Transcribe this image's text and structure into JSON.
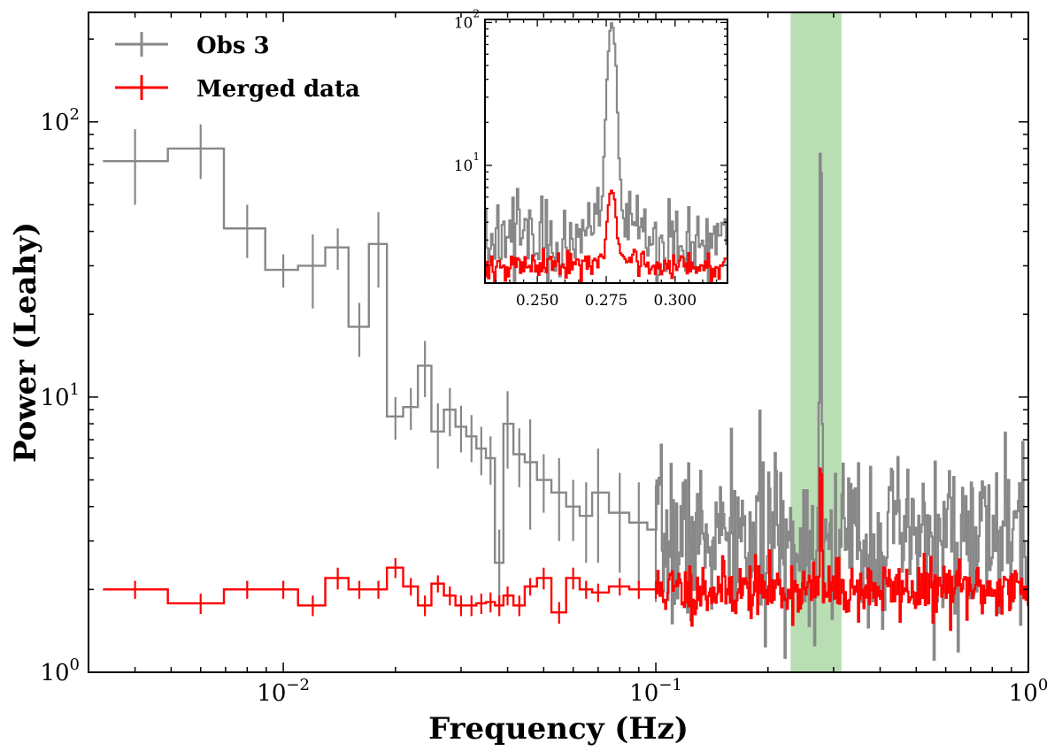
{
  "chart_data": {
    "type": "line",
    "style": "step",
    "title": "",
    "xlabel": "Frequency (Hz)",
    "ylabel": "Power (Leahy)",
    "xscale": "log",
    "yscale": "log",
    "xlim": [
      0.003,
      1.0
    ],
    "ylim": [
      1.0,
      250
    ],
    "x_major_ticks": [
      {
        "value": 0.01,
        "base": "10",
        "exp": "−2"
      },
      {
        "value": 0.1,
        "base": "10",
        "exp": "−1"
      },
      {
        "value": 1.0,
        "base": "10",
        "exp": "0"
      }
    ],
    "y_major_ticks": [
      {
        "value": 1,
        "base": "10",
        "exp": "0"
      },
      {
        "value": 10,
        "base": "10",
        "exp": "1"
      },
      {
        "value": 100,
        "base": "10",
        "exp": "2"
      }
    ],
    "highlight_band": {
      "x_from": 0.23,
      "x_to": 0.315,
      "color": "#b5dcb0"
    },
    "legend": {
      "placement": "top-left",
      "entries": [
        {
          "label": "Obs 3",
          "color": "#888888"
        },
        {
          "label": "Merged data",
          "color": "#ff0000"
        }
      ]
    },
    "series": [
      {
        "name": "Obs 3",
        "color": "#888888",
        "points": [
          [
            0.004,
            72,
            22
          ],
          [
            0.006,
            80,
            18
          ],
          [
            0.008,
            41,
            9
          ],
          [
            0.01,
            29,
            4
          ],
          [
            0.012,
            30,
            9
          ],
          [
            0.014,
            35,
            6
          ],
          [
            0.016,
            18,
            4
          ],
          [
            0.018,
            36,
            11
          ],
          [
            0.02,
            8.5,
            1.5
          ],
          [
            0.022,
            9.2,
            1.6
          ],
          [
            0.024,
            13,
            3
          ],
          [
            0.026,
            7.5,
            2
          ],
          [
            0.028,
            9.0,
            1.8
          ],
          [
            0.03,
            7.8,
            1.5
          ],
          [
            0.032,
            7.2,
            1.4
          ],
          [
            0.034,
            6.5,
            1.3
          ],
          [
            0.036,
            6.0,
            1.2
          ],
          [
            0.038,
            2.5,
            0.8
          ],
          [
            0.04,
            8.0,
            2.5
          ],
          [
            0.043,
            6.2,
            1.5
          ],
          [
            0.046,
            5.8,
            2.5
          ],
          [
            0.05,
            5.0,
            1.2
          ],
          [
            0.055,
            4.5,
            1.5
          ],
          [
            0.06,
            4.0,
            1.0
          ],
          [
            0.065,
            3.7,
            1.2
          ],
          [
            0.07,
            4.5,
            2.0
          ],
          [
            0.08,
            3.8,
            1.5
          ],
          [
            0.09,
            3.5,
            1.4
          ],
          [
            0.1,
            3.3,
            1.5
          ]
        ],
        "noise": {
          "x_from": 0.1,
          "x_to": 1.0,
          "n": 340,
          "mean": 3.0,
          "spread": 0.35,
          "seed": 7
        },
        "peak": {
          "x": 0.277,
          "height": 93,
          "width": 0.0012
        }
      },
      {
        "name": "Merged data",
        "color": "#ff0000",
        "points": [
          [
            0.004,
            2.0,
            0.15
          ],
          [
            0.006,
            1.78,
            0.15
          ],
          [
            0.008,
            2.0,
            0.15
          ],
          [
            0.01,
            2.0,
            0.15
          ],
          [
            0.012,
            1.75,
            0.15
          ],
          [
            0.014,
            2.2,
            0.2
          ],
          [
            0.016,
            2.0,
            0.15
          ],
          [
            0.018,
            2.0,
            0.15
          ],
          [
            0.02,
            2.4,
            0.2
          ],
          [
            0.022,
            2.05,
            0.15
          ],
          [
            0.024,
            1.75,
            0.15
          ],
          [
            0.026,
            2.1,
            0.15
          ],
          [
            0.028,
            1.9,
            0.15
          ],
          [
            0.03,
            1.75,
            0.15
          ],
          [
            0.032,
            1.75,
            0.15
          ],
          [
            0.034,
            1.78,
            0.15
          ],
          [
            0.036,
            1.8,
            0.15
          ],
          [
            0.038,
            1.75,
            0.15
          ],
          [
            0.04,
            1.9,
            0.15
          ],
          [
            0.043,
            1.75,
            0.15
          ],
          [
            0.046,
            2.05,
            0.15
          ],
          [
            0.05,
            2.2,
            0.2
          ],
          [
            0.055,
            1.65,
            0.15
          ],
          [
            0.06,
            2.2,
            0.2
          ],
          [
            0.065,
            2.0,
            0.15
          ],
          [
            0.07,
            1.95,
            0.15
          ],
          [
            0.08,
            2.05,
            0.15
          ],
          [
            0.09,
            2.0,
            0.15
          ],
          [
            0.1,
            2.0,
            0.15
          ]
        ],
        "noise": {
          "x_from": 0.1,
          "x_to": 1.0,
          "n": 340,
          "mean": 2.0,
          "spread": 0.12,
          "seed": 11
        },
        "peak": {
          "x": 0.277,
          "height": 4.5,
          "width": 0.0012
        }
      }
    ],
    "inset": {
      "xlim": [
        0.231,
        0.319
      ],
      "ylim": [
        1.5,
        105
      ],
      "x_tick_labels": [
        {
          "value": 0.25,
          "label": "0.250"
        },
        {
          "value": 0.275,
          "label": "0.275"
        },
        {
          "value": 0.3,
          "label": "0.300"
        }
      ],
      "y_major_ticks": [
        {
          "value": 10,
          "base": "10",
          "exp": "1"
        },
        {
          "value": 100,
          "base": "10",
          "exp": "2"
        }
      ]
    }
  }
}
